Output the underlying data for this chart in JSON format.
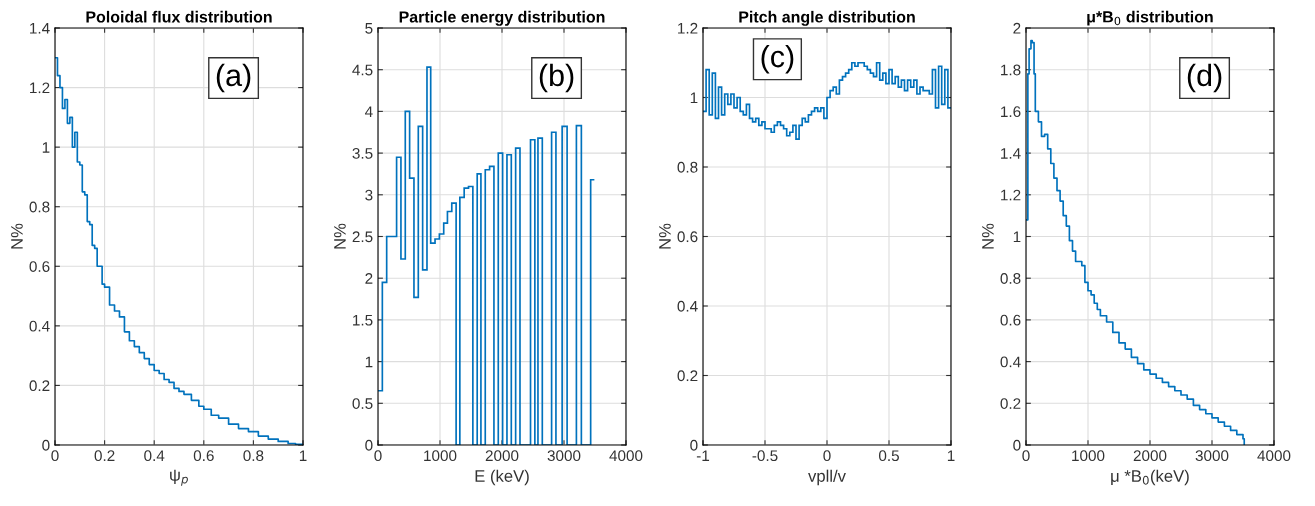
{
  "chart_data": [
    {
      "type": "step",
      "title": "Poloidal flux distribution",
      "xlabel": "ψ$_{p}$",
      "ylabel": "N%",
      "annotations": [
        "(a)"
      ],
      "grid": true,
      "xlim": [
        0,
        1
      ],
      "xticks": [
        0,
        0.2,
        0.4,
        0.6,
        0.8,
        1
      ],
      "ylim": [
        0,
        1.4
      ],
      "yticks": [
        0,
        0.2,
        0.4,
        0.6,
        0.8,
        1,
        1.2,
        1.4
      ],
      "series": [
        {
          "color": "#0072bd",
          "x": [
            0,
            0.01,
            0.02,
            0.03,
            0.04,
            0.05,
            0.06,
            0.07,
            0.08,
            0.09,
            0.1,
            0.11,
            0.12,
            0.13,
            0.14,
            0.15,
            0.16,
            0.17,
            0.18,
            0.19,
            0.2,
            0.22,
            0.24,
            0.26,
            0.28,
            0.3,
            0.32,
            0.34,
            0.36,
            0.38,
            0.4,
            0.42,
            0.44,
            0.46,
            0.48,
            0.5,
            0.52,
            0.55,
            0.58,
            0.6,
            0.63,
            0.66,
            0.7,
            0.74,
            0.78,
            0.82,
            0.86,
            0.9,
            0.94,
            0.97,
            1.0
          ],
          "values": [
            1.3,
            1.24,
            1.2,
            1.13,
            1.16,
            1.08,
            1.1,
            1.0,
            1.05,
            0.95,
            0.94,
            0.85,
            0.84,
            0.75,
            0.74,
            0.67,
            0.66,
            0.6,
            0.6,
            0.54,
            0.53,
            0.47,
            0.45,
            0.43,
            0.38,
            0.35,
            0.33,
            0.31,
            0.29,
            0.27,
            0.25,
            0.24,
            0.22,
            0.21,
            0.19,
            0.18,
            0.17,
            0.15,
            0.13,
            0.12,
            0.1,
            0.09,
            0.07,
            0.055,
            0.045,
            0.03,
            0.02,
            0.012,
            0.005,
            0.002,
            0.0
          ]
        }
      ]
    },
    {
      "type": "histogram",
      "title": "Particle energy distribution",
      "xlabel": "E (keV)",
      "ylabel": "N%",
      "annotations": [
        "(b)"
      ],
      "grid": true,
      "xlim": [
        0,
        4000
      ],
      "xticks": [
        0,
        1000,
        2000,
        3000,
        4000
      ],
      "ylim": [
        0,
        5
      ],
      "yticks": [
        0,
        0.5,
        1,
        1.5,
        2,
        2.5,
        3,
        3.5,
        4,
        4.5,
        5
      ],
      "bins": [
        0,
        70,
        140,
        300,
        370,
        440,
        510,
        580,
        650,
        720,
        790,
        850,
        920,
        990,
        1060,
        1120,
        1190,
        1260,
        1320,
        1390,
        1460,
        1530,
        1600,
        1660,
        1730,
        1800,
        1870,
        1940,
        2010,
        2080,
        2150,
        2220,
        2290,
        2460,
        2530,
        2580,
        2650,
        2800,
        2870,
        2970,
        3050,
        3200,
        3280,
        3430,
        3490
      ],
      "series": [
        {
          "color": "#0072bd",
          "values": [
            0.65,
            1.95,
            2.5,
            3.45,
            2.23,
            4.0,
            3.2,
            1.77,
            3.82,
            2.1,
            4.53,
            2.42,
            2.47,
            2.53,
            2.66,
            2.8,
            2.9,
            0,
            2.97,
            3.08,
            3.1,
            0,
            3.25,
            0,
            3.3,
            3.34,
            0,
            3.5,
            0,
            3.48,
            0,
            3.56,
            0,
            3.66,
            0,
            3.68,
            0,
            3.75,
            0,
            3.82,
            0,
            3.83,
            0,
            3.18
          ]
        }
      ]
    },
    {
      "type": "histogram",
      "title": "Pitch angle distribution",
      "xlabel": "vpll/v",
      "ylabel": "N%",
      "annotations": [
        "(c)"
      ],
      "grid": true,
      "xlim": [
        -1,
        1
      ],
      "xticks": [
        -1,
        -0.5,
        0,
        0.5,
        1
      ],
      "ylim": [
        0,
        1.2
      ],
      "yticks": [
        0,
        0.2,
        0.4,
        0.6,
        0.8,
        1,
        1.2
      ],
      "bins": [
        -1,
        -0.975,
        -0.95,
        -0.925,
        -0.9,
        -0.875,
        -0.85,
        -0.825,
        -0.8,
        -0.775,
        -0.75,
        -0.725,
        -0.7,
        -0.675,
        -0.65,
        -0.625,
        -0.6,
        -0.575,
        -0.55,
        -0.525,
        -0.5,
        -0.475,
        -0.45,
        -0.425,
        -0.4,
        -0.375,
        -0.35,
        -0.325,
        -0.3,
        -0.275,
        -0.25,
        -0.225,
        -0.2,
        -0.175,
        -0.15,
        -0.125,
        -0.1,
        -0.075,
        -0.05,
        -0.025,
        0,
        0.025,
        0.05,
        0.075,
        0.1,
        0.125,
        0.15,
        0.175,
        0.2,
        0.225,
        0.25,
        0.275,
        0.3,
        0.325,
        0.35,
        0.375,
        0.4,
        0.425,
        0.45,
        0.475,
        0.5,
        0.525,
        0.55,
        0.575,
        0.6,
        0.625,
        0.65,
        0.675,
        0.7,
        0.725,
        0.75,
        0.775,
        0.8,
        0.825,
        0.85,
        0.875,
        0.9,
        0.925,
        0.95,
        0.975,
        1
      ],
      "series": [
        {
          "color": "#0072bd",
          "values": [
            0.96,
            1.08,
            0.95,
            1.07,
            0.94,
            1.03,
            0.95,
            1.01,
            0.98,
            1.01,
            0.97,
            1.0,
            0.96,
            0.95,
            0.98,
            0.94,
            0.93,
            0.94,
            0.92,
            0.93,
            0.91,
            0.91,
            0.9,
            0.92,
            0.93,
            0.92,
            0.91,
            0.89,
            0.9,
            0.92,
            0.88,
            0.92,
            0.94,
            0.93,
            0.95,
            0.96,
            0.97,
            0.96,
            0.97,
            0.94,
            1.0,
            1.02,
            1.03,
            1.01,
            1.05,
            1.06,
            1.07,
            1.08,
            1.1,
            1.09,
            1.1,
            1.1,
            1.09,
            1.08,
            1.07,
            1.06,
            1.1,
            1.05,
            1.07,
            1.04,
            1.08,
            1.04,
            1.06,
            1.03,
            1.05,
            1.02,
            1.05,
            1.03,
            1.05,
            1.01,
            1.03,
            1.02,
            1.02,
            1.01,
            1.08,
            0.97,
            1.09,
            0.98,
            1.08,
            0.97
          ]
        }
      ]
    },
    {
      "type": "step",
      "title": "μ*B$_{0}$ distribution",
      "xlabel": "μ *B$_{0}$(keV)",
      "ylabel": "N%",
      "annotations": [
        "(d)"
      ],
      "grid": true,
      "xlim": [
        0,
        4000
      ],
      "xticks": [
        0,
        1000,
        2000,
        3000,
        4000
      ],
      "ylim": [
        0,
        2
      ],
      "yticks": [
        0,
        0.2,
        0.4,
        0.6,
        0.8,
        1,
        1.2,
        1.4,
        1.6,
        1.8,
        2
      ],
      "series": [
        {
          "color": "#0072bd",
          "x": [
            0,
            20,
            30,
            50,
            80,
            100,
            130,
            150,
            200,
            250,
            300,
            350,
            400,
            450,
            500,
            550,
            600,
            650,
            700,
            750,
            800,
            900,
            950,
            1000,
            1050,
            1100,
            1150,
            1200,
            1300,
            1400,
            1500,
            1600,
            1700,
            1800,
            1900,
            2000,
            2100,
            2200,
            2300,
            2400,
            2500,
            2600,
            2700,
            2800,
            2900,
            3000,
            3100,
            3200,
            3300,
            3400,
            3500,
            3520
          ],
          "values": [
            1.08,
            1.08,
            1.78,
            1.9,
            1.94,
            1.93,
            1.78,
            1.6,
            1.55,
            1.48,
            1.49,
            1.42,
            1.35,
            1.28,
            1.22,
            1.17,
            1.1,
            1.05,
            0.98,
            0.93,
            0.88,
            0.86,
            0.78,
            0.74,
            0.72,
            0.68,
            0.65,
            0.62,
            0.59,
            0.54,
            0.49,
            0.46,
            0.42,
            0.39,
            0.36,
            0.34,
            0.32,
            0.3,
            0.28,
            0.26,
            0.24,
            0.22,
            0.19,
            0.17,
            0.15,
            0.13,
            0.11,
            0.09,
            0.07,
            0.05,
            0.03,
            0.0
          ]
        }
      ]
    }
  ]
}
